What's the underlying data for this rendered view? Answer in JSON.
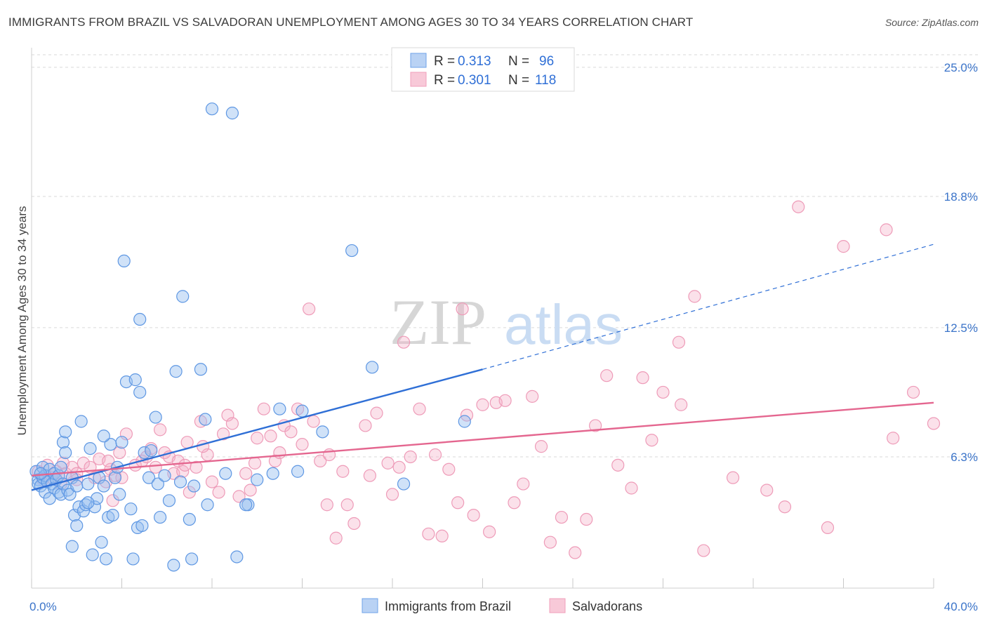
{
  "title": "IMMIGRANTS FROM BRAZIL VS SALVADORAN UNEMPLOYMENT AMONG AGES 30 TO 34 YEARS CORRELATION CHART",
  "source": "Source: ZipAtlas.com",
  "colors": {
    "blue": "#6fa3e8",
    "blue_line": "#2f6fd6",
    "pink": "#f0a0bb",
    "pink_line": "#e4668f",
    "tick": "#3b74c9",
    "grid": "#d9d9d9"
  },
  "legend": {
    "rows": [
      {
        "r_label": "R =",
        "r_value": "0.313",
        "n_label": "N =",
        "n_value": "96"
      },
      {
        "r_label": "R =",
        "r_value": "0.301",
        "n_label": "N =",
        "n_value": "118"
      }
    ]
  },
  "chart_data": {
    "type": "scatter",
    "title": "IMMIGRANTS FROM BRAZIL VS SALVADORAN UNEMPLOYMENT AMONG AGES 30 TO 34 YEARS CORRELATION CHART",
    "xlabel": "",
    "ylabel": "Unemployment Among Ages 30 to 34 years",
    "xlim": [
      0,
      40
    ],
    "ylim": [
      0,
      25.6
    ],
    "x_tick_labels": [
      "0.0%",
      "40.0%"
    ],
    "y_ticks": [
      6.3,
      12.5,
      18.8,
      25.0
    ],
    "y_tick_labels": [
      "6.3%",
      "12.5%",
      "18.8%",
      "25.0%"
    ],
    "grid": true,
    "legend_position": "top-center",
    "series": [
      {
        "name": "Immigrants from Brazil",
        "color": "#6fa3e8",
        "trend": {
          "x": [
            0,
            20
          ],
          "y": [
            4.7,
            10.5
          ],
          "dashed_to": [
            40,
            16.5
          ]
        },
        "points": [
          [
            0.2,
            5.6
          ],
          [
            0.3,
            5.2
          ],
          [
            0.3,
            5.0
          ],
          [
            0.4,
            4.9
          ],
          [
            0.5,
            5.3
          ],
          [
            0.5,
            5.8
          ],
          [
            0.6,
            5.4
          ],
          [
            0.6,
            4.6
          ],
          [
            0.7,
            5.1
          ],
          [
            0.8,
            4.3
          ],
          [
            0.8,
            5.7
          ],
          [
            0.9,
            5.0
          ],
          [
            1.0,
            5.5
          ],
          [
            1.0,
            4.8
          ],
          [
            1.1,
            5.2
          ],
          [
            1.2,
            4.6
          ],
          [
            1.2,
            5.4
          ],
          [
            1.3,
            4.5
          ],
          [
            1.4,
            5.0
          ],
          [
            1.4,
            7.0
          ],
          [
            1.5,
            6.5
          ],
          [
            1.5,
            7.5
          ],
          [
            1.6,
            4.7
          ],
          [
            1.7,
            4.5
          ],
          [
            1.8,
            5.3
          ],
          [
            1.8,
            2.0
          ],
          [
            1.9,
            3.5
          ],
          [
            2.0,
            4.9
          ],
          [
            2.0,
            3.0
          ],
          [
            2.1,
            3.9
          ],
          [
            2.2,
            8.0
          ],
          [
            2.3,
            3.7
          ],
          [
            2.4,
            4.0
          ],
          [
            2.5,
            5.0
          ],
          [
            2.6,
            6.7
          ],
          [
            2.7,
            1.6
          ],
          [
            2.8,
            3.9
          ],
          [
            2.9,
            4.3
          ],
          [
            3.0,
            5.3
          ],
          [
            3.1,
            2.2
          ],
          [
            3.2,
            4.9
          ],
          [
            3.3,
            1.4
          ],
          [
            3.4,
            3.4
          ],
          [
            3.5,
            6.9
          ],
          [
            3.6,
            3.5
          ],
          [
            3.7,
            5.3
          ],
          [
            3.8,
            5.8
          ],
          [
            3.9,
            4.5
          ],
          [
            4.0,
            7.0
          ],
          [
            4.1,
            15.7
          ],
          [
            4.2,
            9.9
          ],
          [
            4.4,
            3.8
          ],
          [
            4.5,
            1.4
          ],
          [
            4.6,
            10.0
          ],
          [
            4.7,
            2.9
          ],
          [
            4.8,
            9.4
          ],
          [
            4.8,
            12.9
          ],
          [
            4.9,
            3.0
          ],
          [
            5.0,
            6.5
          ],
          [
            5.2,
            5.3
          ],
          [
            5.5,
            8.2
          ],
          [
            5.6,
            5.0
          ],
          [
            5.7,
            3.4
          ],
          [
            5.9,
            5.4
          ],
          [
            6.1,
            4.2
          ],
          [
            6.3,
            1.1
          ],
          [
            6.4,
            10.4
          ],
          [
            6.6,
            5.1
          ],
          [
            6.7,
            14.0
          ],
          [
            7.0,
            3.3
          ],
          [
            7.1,
            1.4
          ],
          [
            7.2,
            4.9
          ],
          [
            7.5,
            10.5
          ],
          [
            7.7,
            8.1
          ],
          [
            7.8,
            4.0
          ],
          [
            8.0,
            23.0
          ],
          [
            8.6,
            5.5
          ],
          [
            8.9,
            22.8
          ],
          [
            9.1,
            1.5
          ],
          [
            9.6,
            4.0
          ],
          [
            10.0,
            5.2
          ],
          [
            10.7,
            5.5
          ],
          [
            11.0,
            8.6
          ],
          [
            11.8,
            5.6
          ],
          [
            12.0,
            8.5
          ],
          [
            12.9,
            7.5
          ],
          [
            14.2,
            16.2
          ],
          [
            15.1,
            10.6
          ],
          [
            16.5,
            5.0
          ],
          [
            19.2,
            8.0
          ],
          [
            0.4,
            5.5
          ],
          [
            1.3,
            5.8
          ],
          [
            2.5,
            4.1
          ],
          [
            3.2,
            7.3
          ],
          [
            9.5,
            4.0
          ],
          [
            5.3,
            6.6
          ]
        ]
      },
      {
        "name": "Salvadorans",
        "color": "#f0a0bb",
        "trend": {
          "x": [
            0,
            40
          ],
          "y": [
            5.4,
            8.9
          ]
        },
        "points": [
          [
            0.3,
            5.6
          ],
          [
            0.5,
            5.2
          ],
          [
            0.7,
            5.9
          ],
          [
            0.9,
            5.3
          ],
          [
            1.1,
            5.6
          ],
          [
            1.3,
            5.0
          ],
          [
            1.5,
            5.5
          ],
          [
            1.8,
            5.8
          ],
          [
            2.0,
            5.5
          ],
          [
            2.3,
            6.0
          ],
          [
            2.6,
            5.8
          ],
          [
            2.8,
            5.3
          ],
          [
            3.0,
            6.2
          ],
          [
            3.3,
            5.1
          ],
          [
            3.5,
            5.7
          ],
          [
            3.6,
            4.2
          ],
          [
            3.7,
            5.4
          ],
          [
            3.9,
            6.5
          ],
          [
            4.2,
            7.4
          ],
          [
            4.6,
            5.9
          ],
          [
            4.9,
            6.1
          ],
          [
            5.1,
            6.3
          ],
          [
            5.3,
            6.7
          ],
          [
            5.5,
            5.8
          ],
          [
            5.7,
            7.6
          ],
          [
            5.9,
            6.5
          ],
          [
            6.1,
            6.3
          ],
          [
            6.3,
            5.5
          ],
          [
            6.5,
            6.1
          ],
          [
            6.7,
            5.6
          ],
          [
            6.9,
            7.0
          ],
          [
            7.0,
            4.6
          ],
          [
            7.3,
            5.8
          ],
          [
            7.5,
            8.0
          ],
          [
            7.8,
            6.4
          ],
          [
            8.0,
            5.1
          ],
          [
            8.3,
            4.6
          ],
          [
            8.5,
            7.4
          ],
          [
            8.7,
            8.3
          ],
          [
            8.9,
            7.9
          ],
          [
            9.2,
            4.4
          ],
          [
            9.5,
            5.5
          ],
          [
            9.7,
            4.7
          ],
          [
            10.0,
            7.2
          ],
          [
            10.3,
            8.6
          ],
          [
            10.6,
            7.3
          ],
          [
            10.8,
            6.1
          ],
          [
            11.0,
            6.5
          ],
          [
            11.2,
            7.8
          ],
          [
            11.5,
            7.5
          ],
          [
            11.8,
            8.6
          ],
          [
            12.0,
            6.9
          ],
          [
            12.3,
            13.4
          ],
          [
            12.5,
            8.0
          ],
          [
            12.8,
            6.1
          ],
          [
            13.2,
            6.4
          ],
          [
            13.5,
            2.4
          ],
          [
            13.8,
            5.6
          ],
          [
            14.0,
            4.0
          ],
          [
            14.3,
            3.1
          ],
          [
            14.8,
            7.8
          ],
          [
            15.0,
            5.4
          ],
          [
            15.3,
            8.4
          ],
          [
            15.8,
            6.0
          ],
          [
            16.0,
            4.5
          ],
          [
            16.3,
            5.8
          ],
          [
            16.8,
            6.3
          ],
          [
            17.2,
            8.6
          ],
          [
            17.6,
            2.6
          ],
          [
            17.9,
            6.4
          ],
          [
            18.2,
            2.5
          ],
          [
            18.5,
            5.7
          ],
          [
            18.9,
            4.1
          ],
          [
            19.3,
            8.3
          ],
          [
            19.6,
            3.5
          ],
          [
            20.0,
            8.8
          ],
          [
            20.3,
            2.7
          ],
          [
            20.6,
            8.9
          ],
          [
            21.0,
            9.0
          ],
          [
            21.4,
            4.1
          ],
          [
            21.8,
            5.0
          ],
          [
            22.2,
            9.2
          ],
          [
            22.6,
            6.8
          ],
          [
            23.0,
            2.2
          ],
          [
            23.5,
            3.4
          ],
          [
            24.1,
            1.7
          ],
          [
            24.6,
            3.3
          ],
          [
            25.0,
            7.8
          ],
          [
            25.5,
            10.2
          ],
          [
            26.0,
            5.9
          ],
          [
            26.6,
            4.8
          ],
          [
            27.1,
            10.1
          ],
          [
            27.5,
            7.1
          ],
          [
            28.0,
            9.4
          ],
          [
            28.7,
            11.8
          ],
          [
            28.8,
            8.8
          ],
          [
            29.4,
            14.0
          ],
          [
            29.8,
            1.8
          ],
          [
            31.1,
            5.3
          ],
          [
            32.6,
            4.7
          ],
          [
            33.4,
            3.9
          ],
          [
            34.0,
            18.3
          ],
          [
            35.3,
            2.9
          ],
          [
            36.0,
            16.4
          ],
          [
            37.9,
            17.2
          ],
          [
            38.2,
            7.2
          ],
          [
            39.1,
            9.4
          ],
          [
            40.0,
            7.9
          ],
          [
            19.1,
            13.4
          ],
          [
            16.5,
            11.8
          ],
          [
            4.0,
            5.3
          ],
          [
            2.0,
            5.2
          ],
          [
            1.4,
            6.0
          ],
          [
            6.8,
            5.9
          ],
          [
            7.6,
            6.8
          ],
          [
            9.9,
            6.0
          ],
          [
            13.1,
            4.0
          ],
          [
            3.4,
            6.1
          ]
        ]
      }
    ]
  },
  "bottom_legend": [
    "Immigrants from Brazil",
    "Salvadorans"
  ],
  "watermark": {
    "bold": "ZIP",
    "light": "atlas"
  }
}
